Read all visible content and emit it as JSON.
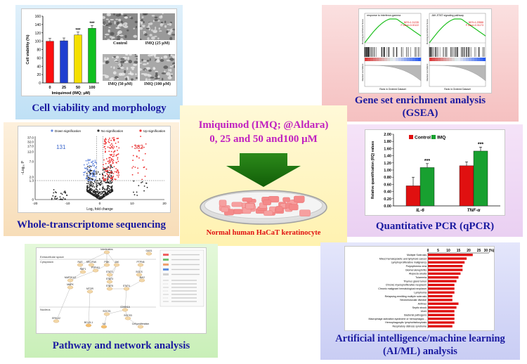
{
  "viability": {
    "title": "Cell viability and morphology",
    "ylabel": "Cell viability (%)",
    "xlabel": "Imiquimod (IMQ; μM)",
    "yticks": [
      "0",
      "20",
      "40",
      "60",
      "80",
      "100",
      "120",
      "140",
      "160"
    ],
    "bars": [
      {
        "x": "0",
        "value": 100,
        "color": "#ff1010",
        "sig": ""
      },
      {
        "x": "25",
        "value": 101,
        "color": "#1f3fd0",
        "sig": ""
      },
      {
        "x": "50",
        "value": 115,
        "color": "#f5e000",
        "sig": "***"
      },
      {
        "x": "100",
        "value": 131,
        "color": "#10c020",
        "sig": "***"
      }
    ],
    "images": [
      "Control",
      "IMQ (25 μM)",
      "IMQ (50 μM)",
      "IMQ (100 μM)"
    ]
  },
  "gsea": {
    "title_line1": "Gene set enrichment analysis",
    "title_line2": "(GSEA)",
    "plots": [
      {
        "name": "response to interferon-gamma",
        "stats": [
          "NES=1.31235",
          "P value=0.00122"
        ]
      },
      {
        "name": "JAK-STAT signaling pathway",
        "stats": [
          "NES=1.29588",
          "P value=0.01173"
        ]
      }
    ],
    "ylabel_top": "Running Enrichment Score",
    "ylabel_bottom": "Ranked List Metric",
    "xlabel": "Rank in Ordered Dataset"
  },
  "transcriptome": {
    "title": "Whole-transcriptome sequencing",
    "legend": [
      "Down signification",
      "No signification",
      "Up signification"
    ],
    "down_count": "131",
    "up_count": "382",
    "ylabel": "−Log₁₀ P",
    "xlabel": "Log₂ fold change",
    "yticks": [
      "37.0",
      "32.0",
      "17.0",
      "12.0",
      "7.0",
      "2.0",
      "1.3",
      "0"
    ],
    "xticks": [
      "-20",
      "-10",
      "0",
      "10",
      "20"
    ]
  },
  "center": {
    "heading_line1": "Imiquimod (IMQ; @Aldara)",
    "heading_line2": "0, 25 and 50 and100 μM",
    "cell_label": "Normal human HaCaT keratinocyte",
    "colors": {
      "heading": "#c020c0",
      "arrow": "#1e7a12",
      "cell": "#ee1111"
    }
  },
  "qpcr": {
    "title": "Quantitative PCR (qPCR)",
    "ylabel": "Relative quantification (RQ) values",
    "yticks": [
      "0.00",
      "0.20",
      "0.40",
      "0.60",
      "0.80",
      "1.00",
      "1.20",
      "1.40",
      "1.60",
      "1.80",
      "2.00"
    ],
    "legend": [
      "Control",
      "IMQ"
    ],
    "categories": [
      "IL-6",
      "TNF-α"
    ],
    "series": [
      {
        "name": "Control",
        "color": "#e01010",
        "values": [
          0.56,
          1.12
        ]
      },
      {
        "name": "IMQ",
        "color": "#18a030",
        "values": [
          1.07,
          1.53
        ]
      }
    ],
    "sig": [
      "***",
      "***"
    ]
  },
  "pathway": {
    "title": "Pathway and network analysis",
    "region_labels": [
      "Extracellular space",
      "Cytoplasm",
      "Nucleus"
    ],
    "nodes": [
      "Interleukins Growth factors Interferons",
      "GAS1",
      "RAS",
      "SRC/FAK",
      "PI3K",
      "JAK",
      "PTPN6",
      "RAF1",
      "PTPN11",
      "STAT1",
      "SOCS",
      "JAK2",
      "MAP2K1/2",
      "STAT3",
      "STAT5",
      "MAPK",
      "MTOR",
      "STAT4",
      "CDKN1A",
      "SOCS1",
      "SOCS3",
      "ERK1/2",
      "BCL2L1",
      "IL6",
      "Cell proliferation"
    ]
  },
  "ai": {
    "title_line1": "Artificial intelligence/machine learning",
    "title_line2": "(AI/ML) analysis",
    "axis_ticks": [
      "0",
      "5",
      "10",
      "15",
      "20",
      "25",
      "30 (%)"
    ],
    "bar_color": "#e01010",
    "chart_data": {
      "type": "bar",
      "categories": [
        "Multiple Sclerosis",
        "Mixed hematopoietic and lymphoid cancer",
        "Lymphoproliferative malignancy",
        "Polycythemia vera",
        "Glomerulonephritis",
        "Alopecia areata",
        "Tularemia",
        "Thymus gland tumor",
        "Chronic myeloproliferative neoplasm",
        "Chronic malignant hematological neoplasm",
        "Lymphoma",
        "Relapsing-remitting multiple sclerosis",
        "Neuromuscular disease",
        "Anthrax",
        "Septic shock",
        "Ulcer",
        "Bacterial pathogens",
        "Macrophage activation syndrome or hemophagocytic lymphohistiocytosis",
        "Hemophagocytic lymphohistiocytosis",
        "Respiratory distress syndrome"
      ],
      "values": [
        22,
        19,
        18,
        17,
        17,
        16,
        15,
        14,
        13,
        13,
        13,
        12,
        12,
        15,
        14,
        13,
        13,
        13,
        13,
        12
      ],
      "xlim": [
        0,
        30
      ]
    }
  }
}
